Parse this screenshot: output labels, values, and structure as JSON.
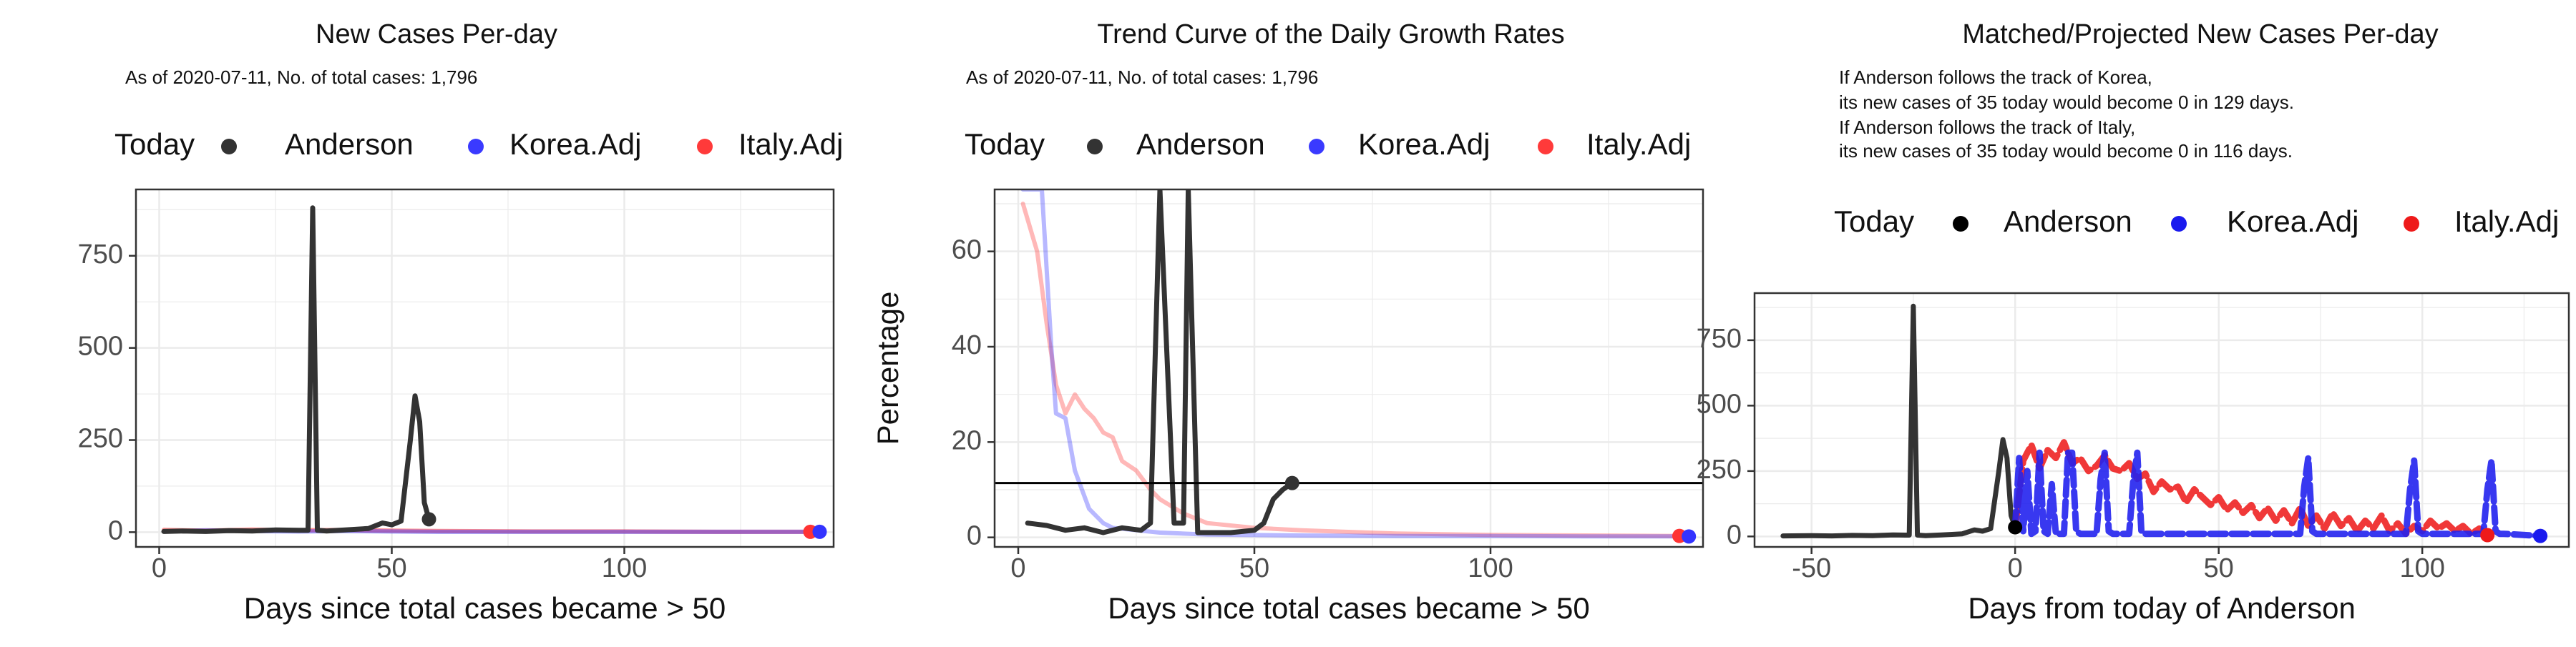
{
  "chart_data": [
    {
      "type": "line",
      "title": "New Cases Per-day",
      "subtitle": "As of 2020-07-11, No. of total cases: 1,796",
      "xlabel": "Days since total cases became > 50",
      "ylabel": "",
      "legend": {
        "position": "top",
        "title": "Today",
        "entries": [
          {
            "label": "Anderson",
            "color": "#333333"
          },
          {
            "label": "Korea.Adj",
            "color": "#3a3aff"
          },
          {
            "label": "Italy.Adj",
            "color": "#ff3a3a"
          }
        ]
      },
      "xlim": [
        -5,
        145
      ],
      "ylim": [
        -40,
        930
      ],
      "xticks": [
        0,
        50,
        100
      ],
      "yticks": [
        0,
        250,
        500,
        750
      ],
      "grid": true,
      "series": [
        {
          "name": "Italy.Adj",
          "color": "#ff3333",
          "opacity": 0.55,
          "width": 6,
          "x": [
            1,
            10,
            20,
            30,
            40,
            50,
            60,
            80,
            100,
            120,
            140
          ],
          "y": [
            6,
            4,
            7,
            5,
            6,
            4,
            3,
            2,
            2,
            1,
            1
          ]
        },
        {
          "name": "Korea.Adj",
          "color": "#3333ff",
          "opacity": 0.45,
          "width": 6,
          "x": [
            1,
            10,
            20,
            30,
            40,
            50,
            60,
            80,
            100,
            120,
            142
          ],
          "y": [
            2,
            5,
            3,
            2,
            3,
            2,
            1,
            1,
            1,
            1,
            1
          ]
        },
        {
          "name": "Anderson",
          "color": "#333333",
          "opacity": 1,
          "width": 7,
          "x": [
            1,
            5,
            10,
            15,
            20,
            25,
            30,
            32,
            33,
            34,
            36,
            40,
            45,
            48,
            50,
            52,
            54,
            55,
            56,
            57,
            58
          ],
          "y": [
            2,
            3,
            2,
            4,
            3,
            6,
            5,
            5,
            880,
            5,
            3,
            6,
            10,
            25,
            20,
            30,
            250,
            370,
            300,
            80,
            35
          ]
        }
      ],
      "today_points": [
        {
          "series": "Anderson",
          "x": 58,
          "y": 35,
          "color": "#333333"
        },
        {
          "series": "Italy.Adj",
          "x": 140,
          "y": 1,
          "color": "#ff3333"
        },
        {
          "series": "Korea.Adj",
          "x": 142,
          "y": 1,
          "color": "#3333ff"
        }
      ]
    },
    {
      "type": "line",
      "title": "Trend Curve of the Daily Growth Rates",
      "subtitle": "As of 2020-07-11, No. of total cases: 1,796",
      "xlabel": "Days since total cases became > 50",
      "ylabel": "Percentage",
      "legend": {
        "position": "top",
        "title": "Today",
        "entries": [
          {
            "label": "Anderson",
            "color": "#333333"
          },
          {
            "label": "Korea.Adj",
            "color": "#3a3aff"
          },
          {
            "label": "Italy.Adj",
            "color": "#ff3a3a"
          }
        ]
      },
      "xlim": [
        -5,
        145
      ],
      "ylim": [
        -2,
        73
      ],
      "xticks": [
        0,
        50,
        100
      ],
      "yticks": [
        0,
        20,
        40,
        60
      ],
      "hline": 11.4,
      "grid": true,
      "series": [
        {
          "name": "Italy.Adj",
          "color": "#ff3333",
          "opacity": 0.35,
          "width": 6,
          "x": [
            1,
            4,
            6,
            8,
            10,
            12,
            14,
            16,
            18,
            20,
            22,
            25,
            28,
            30,
            35,
            40,
            50,
            60,
            80,
            100,
            120,
            140
          ],
          "y": [
            70,
            60,
            45,
            32,
            26,
            30,
            27,
            25,
            22,
            21,
            16,
            14,
            10,
            8,
            5,
            3,
            2,
            1.5,
            0.8,
            0.5,
            0.4,
            0.3
          ]
        },
        {
          "name": "Korea.Adj",
          "color": "#3333ff",
          "opacity": 0.35,
          "width": 6,
          "x": [
            1,
            5,
            7,
            8,
            10,
            12,
            15,
            18,
            20,
            25,
            30,
            40,
            60,
            80,
            100,
            120,
            142
          ],
          "y": [
            73,
            73,
            40,
            26,
            25,
            14,
            6,
            3,
            2,
            1.5,
            1,
            0.6,
            0.4,
            0.3,
            0.3,
            0.2,
            0.2
          ]
        },
        {
          "name": "Anderson",
          "color": "#333333",
          "opacity": 1,
          "width": 7,
          "x": [
            2,
            6,
            10,
            14,
            18,
            22,
            26,
            28,
            30,
            33,
            35,
            36,
            38,
            40,
            45,
            50,
            52,
            54,
            56,
            58
          ],
          "y": [
            3,
            2.5,
            1.5,
            2,
            1,
            2,
            1.5,
            3,
            73,
            3,
            3,
            73,
            1,
            1,
            1,
            1.5,
            3,
            8,
            10,
            11.4
          ]
        }
      ],
      "today_points": [
        {
          "series": "Anderson",
          "x": 58,
          "y": 11.4,
          "color": "#333333"
        },
        {
          "series": "Italy.Adj",
          "x": 140,
          "y": 0.3,
          "color": "#ff3333"
        },
        {
          "series": "Korea.Adj",
          "x": 142,
          "y": 0.2,
          "color": "#3333ff"
        }
      ]
    },
    {
      "type": "line",
      "title": "Matched/Projected New Cases Per-day",
      "annotations": [
        "If Anderson follows the track of Korea,",
        "its new cases of 35 today would become 0 in 129 days.",
        "If Anderson follows the track of Italy,",
        "its new cases of 35 today would become 0 in 116 days."
      ],
      "xlabel": "Days from today of Anderson",
      "ylabel": "",
      "legend": {
        "position": "top",
        "title": "Today",
        "entries": [
          {
            "label": "Anderson",
            "color": "#000000"
          },
          {
            "label": "Korea.Adj",
            "color": "#1a1aee"
          },
          {
            "label": "Italy.Adj",
            "color": "#ee1a1a"
          }
        ]
      },
      "xlim": [
        -64,
        136
      ],
      "ylim": [
        -40,
        930
      ],
      "xticks": [
        -50,
        0,
        50,
        100
      ],
      "yticks": [
        0,
        250,
        500,
        750
      ],
      "grid": true,
      "series": [
        {
          "name": "Anderson",
          "color": "#333333",
          "opacity": 1,
          "width": 7,
          "dash": "",
          "x": [
            -57,
            -50,
            -45,
            -40,
            -35,
            -30,
            -27,
            -26,
            -25,
            -24,
            -22,
            -18,
            -13,
            -10,
            -8,
            -6,
            -4,
            -3,
            -2,
            -1,
            0
          ],
          "y": [
            2,
            3,
            2,
            4,
            3,
            6,
            5,
            5,
            880,
            5,
            3,
            6,
            10,
            25,
            20,
            30,
            250,
            370,
            300,
            80,
            35
          ]
        },
        {
          "name": "Italy.Adj",
          "color": "#ee2222",
          "opacity": 0.9,
          "width": 9,
          "dash": "22 8",
          "x": [
            0,
            2,
            4,
            6,
            8,
            10,
            12,
            14,
            16,
            18,
            20,
            22,
            24,
            26,
            28,
            30,
            32,
            34,
            36,
            38,
            40,
            42,
            44,
            46,
            48,
            50,
            52,
            54,
            56,
            58,
            60,
            62,
            64,
            66,
            68,
            70,
            72,
            74,
            76,
            78,
            80,
            82,
            84,
            86,
            88,
            90,
            92,
            94,
            96,
            98,
            100,
            102,
            104,
            106,
            108,
            110,
            112,
            114,
            116
          ],
          "y": [
            35,
            290,
            350,
            260,
            330,
            300,
            360,
            280,
            300,
            250,
            270,
            310,
            260,
            250,
            280,
            220,
            240,
            170,
            210,
            180,
            190,
            130,
            180,
            150,
            120,
            150,
            100,
            130,
            90,
            120,
            70,
            110,
            60,
            100,
            50,
            110,
            40,
            80,
            30,
            90,
            40,
            70,
            20,
            60,
            30,
            80,
            20,
            50,
            10,
            40,
            20,
            60,
            30,
            50,
            20,
            40,
            10,
            30,
            5
          ]
        },
        {
          "name": "Korea.Adj",
          "color": "#2222ee",
          "opacity": 0.9,
          "width": 9,
          "dash": "22 8",
          "x": [
            0,
            1,
            2,
            3,
            4,
            5,
            6,
            7,
            8,
            9,
            10,
            12,
            13,
            14,
            15,
            16,
            20,
            21,
            22,
            23,
            24,
            28,
            29,
            30,
            31,
            32,
            40,
            50,
            60,
            70,
            71,
            72,
            73,
            74,
            75,
            80,
            90,
            96,
            97,
            98,
            99,
            100,
            110,
            115,
            116,
            117,
            118,
            119,
            120,
            129
          ],
          "y": [
            35,
            300,
            20,
            250,
            10,
            20,
            320,
            20,
            10,
            200,
            10,
            10,
            320,
            320,
            20,
            10,
            10,
            220,
            320,
            20,
            10,
            10,
            210,
            320,
            20,
            10,
            10,
            10,
            10,
            10,
            190,
            300,
            20,
            10,
            10,
            10,
            10,
            10,
            180,
            290,
            20,
            10,
            10,
            10,
            180,
            290,
            20,
            10,
            10,
            2
          ]
        }
      ],
      "today_points": [
        {
          "series": "Anderson",
          "x": 0,
          "y": 35,
          "color": "#000000"
        },
        {
          "series": "Italy.Adj",
          "x": 116,
          "y": 5,
          "color": "#ee1a1a"
        },
        {
          "series": "Korea.Adj",
          "x": 129,
          "y": 2,
          "color": "#1a1aee"
        }
      ]
    }
  ]
}
